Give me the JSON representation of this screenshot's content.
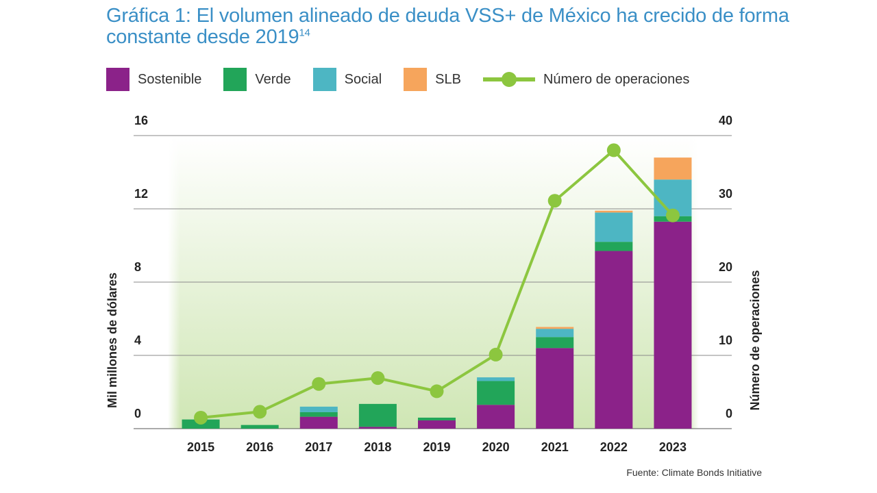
{
  "title": {
    "text": "Gráfica 1: El volumen alineado de deuda VSS+ de México ha crecido de forma constante desde 2019",
    "superscript": "14"
  },
  "source": "Fuente: Climate Bonds Initiative",
  "colors": {
    "sostenible": "#8b2289",
    "verde": "#22a559",
    "social": "#4db6c3",
    "slb": "#f6a55c",
    "line": "#8cc63f",
    "title": "#3a8fc6"
  },
  "chart_data": {
    "type": "bar",
    "stacked": true,
    "categories": [
      "2015",
      "2016",
      "2017",
      "2018",
      "2019",
      "2020",
      "2021",
      "2022",
      "2023"
    ],
    "series": [
      {
        "name": "Sostenible",
        "axis": "left",
        "color": "#8b2289",
        "values": [
          0,
          0,
          0.65,
          0.1,
          0.45,
          1.3,
          4.4,
          9.7,
          11.3
        ]
      },
      {
        "name": "Verde",
        "axis": "left",
        "color": "#22a559",
        "values": [
          0.5,
          0.2,
          0.25,
          1.25,
          0.15,
          1.3,
          0.6,
          0.5,
          0.3
        ]
      },
      {
        "name": "Social",
        "axis": "left",
        "color": "#4db6c3",
        "values": [
          0,
          0,
          0.3,
          0,
          0,
          0.2,
          0.45,
          1.6,
          2.0
        ]
      },
      {
        "name": "SLB",
        "axis": "left",
        "color": "#f6a55c",
        "values": [
          0,
          0,
          0,
          0,
          0,
          0,
          0.1,
          0.1,
          1.2
        ]
      },
      {
        "name": "Número de operaciones",
        "type": "line",
        "axis": "right",
        "color": "#8cc63f",
        "values": [
          1.5,
          2.3,
          6.1,
          6.9,
          5.1,
          10.1,
          31.1,
          38.0,
          29.1
        ]
      }
    ],
    "ylabel": "Mil millones de dólares",
    "y2label": "Número de operaciones",
    "ylim": [
      0,
      16
    ],
    "y2lim": [
      0,
      40
    ],
    "yticks": [
      0,
      4,
      8,
      12,
      16
    ],
    "y2ticks": [
      0,
      10,
      20,
      30,
      40
    ],
    "grid": true,
    "legend": "top"
  }
}
